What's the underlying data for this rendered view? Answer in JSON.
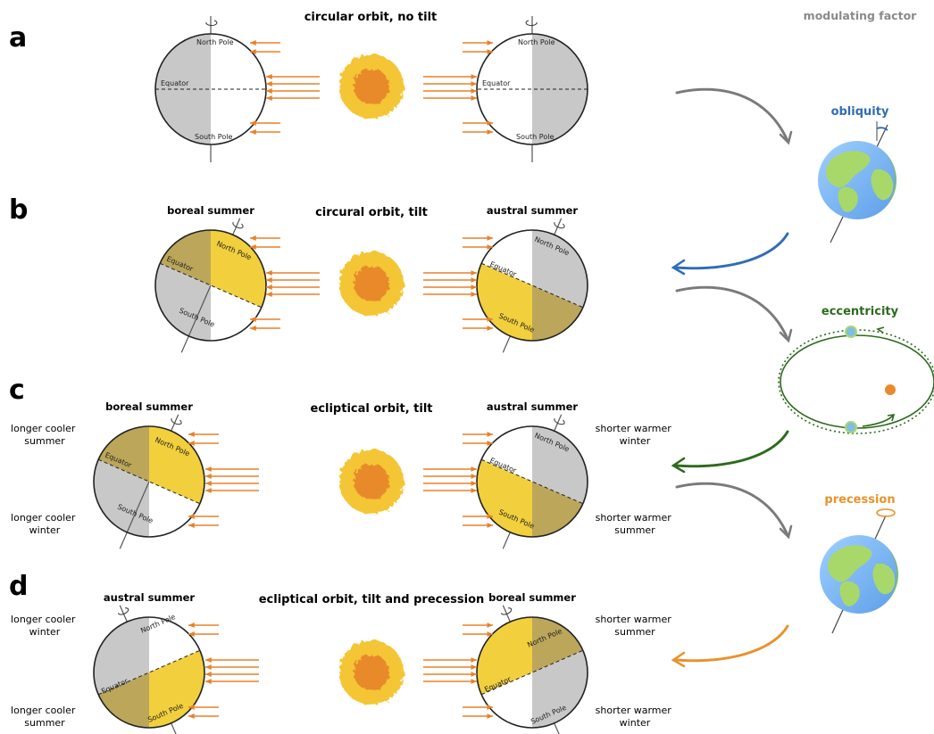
{
  "modulating_factor_header": "modulating factor",
  "colors": {
    "ray": "#e8802a",
    "night": "#c8c8c8",
    "summer_day": "#f2cf3d",
    "summer_night": "#bca65a",
    "sun_outer": "#f4c535",
    "sun_inner": "#e88a2c",
    "obliquity": "#2f6db5",
    "eccentricity": "#2d6a1e",
    "precession": "#e8922c",
    "grey_arrow": "#7a7a7a"
  },
  "panels": {
    "a": {
      "letter": "a",
      "title": "circular orbit, no tilt",
      "left_globe": {
        "north": "North Pole",
        "equator": "Equator",
        "south": "South Pole"
      },
      "right_globe": {
        "north": "North Pole",
        "equator": "Equator",
        "south": "South Pole"
      }
    },
    "b": {
      "letter": "b",
      "title": "circural orbit, tilt",
      "left_season": "boreal summer",
      "right_season": "austral summer",
      "left_globe": {
        "north": "North Pole",
        "equator": "Equator",
        "south": "South Pole"
      },
      "right_globe": {
        "north": "North Pole",
        "equator": "Equator",
        "south": "South Pole"
      }
    },
    "c": {
      "letter": "c",
      "title": "ecliptical orbit, tilt",
      "left_season": "boreal summer",
      "right_season": "austral summer",
      "left_notes": {
        "top_1": "longer cooler",
        "top_2": "summer",
        "bottom_1": "longer cooler",
        "bottom_2": "winter"
      },
      "right_notes": {
        "top_1": "shorter warmer",
        "top_2": "winter",
        "bottom_1": "shorter warmer",
        "bottom_2": "summer"
      },
      "left_globe": {
        "north": "North Pole",
        "equator": "Equator",
        "south": "South Pole"
      },
      "right_globe": {
        "north": "North Pole",
        "equator": "Equator",
        "south": "South Pole"
      }
    },
    "d": {
      "letter": "d",
      "title": "ecliptical orbit, tilt and precession",
      "left_season": "austral summer",
      "right_season": "boreal summer",
      "left_notes": {
        "top_1": "longer cooler",
        "top_2": "winter",
        "bottom_1": "longer cooler",
        "bottom_2": "summer"
      },
      "right_notes": {
        "top_1": "shorter warmer",
        "top_2": "summer",
        "bottom_1": "shorter warmer",
        "bottom_2": "winter"
      },
      "left_globe": {
        "north": "North Pole",
        "equator": "Equator",
        "south": "South Pole"
      },
      "right_globe": {
        "north": "North Pole",
        "equator": "Equator",
        "south": "South Pole"
      }
    }
  },
  "factors": {
    "obliquity": "obliquity",
    "eccentricity": "eccentricity",
    "precession": "precession"
  }
}
